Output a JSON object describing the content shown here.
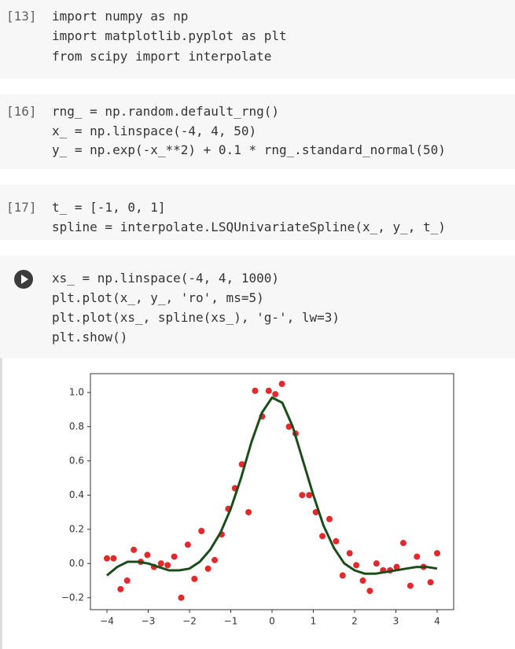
{
  "cells": [
    {
      "prompt": "[13]",
      "code": [
        "import numpy as np",
        "import matplotlib.pyplot as plt",
        "from scipy import interpolate"
      ]
    },
    {
      "prompt": "[16]",
      "code": [
        "rng_ = np.random.default_rng()",
        "x_ = np.linspace(-4, 4, 50)",
        "y_ = np.exp(-x_**2) + 0.1 * rng_.standard_normal(50)"
      ]
    },
    {
      "prompt": "[17]",
      "code": [
        "t_ = [-1, 0, 1]",
        "spline = interpolate.LSQUnivariateSpline(x_, y_, t_)"
      ]
    },
    {
      "code": [
        "xs_ = np.linspace(-4, 4, 1000)",
        "plt.plot(x_, y_, 'ro', ms=5)",
        "plt.plot(xs_, spline(xs_), 'g-', lw=3)",
        "plt.show()"
      ]
    }
  ],
  "chart_data": {
    "type": "line",
    "xlim": [
      -4.4,
      4.4
    ],
    "ylim": [
      -0.27,
      1.11
    ],
    "xticks": [
      {
        "value": -4,
        "label": "−4"
      },
      {
        "value": -3,
        "label": "−3"
      },
      {
        "value": -2,
        "label": "−2"
      },
      {
        "value": -1,
        "label": "−1"
      },
      0,
      1,
      2,
      3,
      4
    ],
    "yticks": [
      {
        "value": -0.2,
        "label": "−0.2"
      },
      {
        "value": 0,
        "label": "0.0"
      },
      {
        "value": 0.2,
        "label": "0.2"
      },
      {
        "value": 0.4,
        "label": "0.4"
      },
      {
        "value": 0.6,
        "label": "0.6"
      },
      {
        "value": 0.8,
        "label": "0.8"
      },
      {
        "value": 1,
        "label": "1.0"
      }
    ],
    "series": [
      {
        "style": "points",
        "color": "#e4282b",
        "x": [
          -4.0,
          -3.84,
          -3.67,
          -3.51,
          -3.35,
          -3.18,
          -3.02,
          -2.86,
          -2.69,
          -2.53,
          -2.37,
          -2.2,
          -2.04,
          -1.88,
          -1.71,
          -1.55,
          -1.39,
          -1.22,
          -1.06,
          -0.9,
          -0.73,
          -0.57,
          -0.41,
          -0.24,
          -0.08,
          0.08,
          0.24,
          0.41,
          0.57,
          0.73,
          0.9,
          1.06,
          1.22,
          1.39,
          1.55,
          1.71,
          1.88,
          2.04,
          2.2,
          2.37,
          2.53,
          2.69,
          2.86,
          3.02,
          3.18,
          3.35,
          3.51,
          3.67,
          3.84,
          4.0
        ],
        "values": [
          0.03,
          0.03,
          -0.15,
          -0.1,
          0.08,
          0.01,
          0.05,
          -0.02,
          0.0,
          -0.01,
          0.04,
          -0.2,
          0.11,
          -0.09,
          0.19,
          -0.03,
          0.02,
          0.17,
          0.32,
          0.44,
          0.58,
          0.3,
          1.01,
          0.86,
          1.01,
          0.99,
          1.05,
          0.8,
          0.76,
          0.4,
          0.4,
          0.3,
          0.16,
          0.26,
          0.13,
          -0.07,
          0.06,
          -0.01,
          -0.1,
          -0.16,
          0.0,
          -0.04,
          -0.04,
          -0.02,
          0.12,
          -0.13,
          0.04,
          -0.02,
          -0.11,
          0.06
        ]
      },
      {
        "style": "line",
        "color": "#1b4d1b",
        "x": [
          -4,
          -3.75,
          -3.5,
          -3.25,
          -3,
          -2.75,
          -2.5,
          -2.25,
          -2,
          -1.75,
          -1.5,
          -1.25,
          -1,
          -0.75,
          -0.5,
          -0.25,
          0,
          0.25,
          0.5,
          0.75,
          1,
          1.25,
          1.5,
          1.75,
          2,
          2.25,
          2.5,
          2.75,
          3,
          3.25,
          3.5,
          3.75,
          4
        ],
        "values": [
          -0.07,
          -0.02,
          0.01,
          0.01,
          0.0,
          -0.02,
          -0.04,
          -0.04,
          -0.03,
          0.01,
          0.08,
          0.18,
          0.32,
          0.5,
          0.71,
          0.88,
          0.97,
          0.94,
          0.8,
          0.6,
          0.4,
          0.22,
          0.09,
          0.0,
          -0.04,
          -0.06,
          -0.06,
          -0.05,
          -0.04,
          -0.03,
          -0.02,
          -0.02,
          -0.03
        ]
      }
    ]
  }
}
